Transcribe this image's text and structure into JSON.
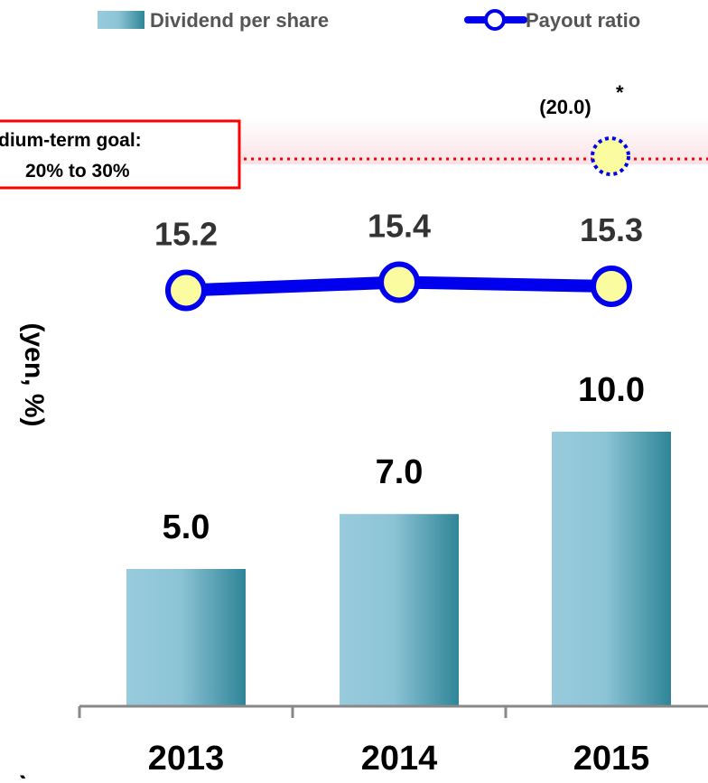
{
  "chart_data": {
    "type": "bar",
    "categories": [
      "2013",
      "2014",
      "2015"
    ],
    "series": [
      {
        "name": "Dividend per share",
        "kind": "bar",
        "values": [
          5.0,
          7.0,
          10.0
        ],
        "labels": [
          "5.0",
          "7.0",
          "10.0"
        ]
      },
      {
        "name": "Payout ratio",
        "kind": "line",
        "values": [
          15.2,
          15.4,
          15.3
        ],
        "labels": [
          "15.2",
          "15.4",
          "15.3"
        ]
      }
    ],
    "target_point": {
      "category": "2015",
      "value": 20.0,
      "label": "(20.0)",
      "note": "*"
    },
    "goal_label": [
      "dium-term goal:",
      "20% to 30%"
    ],
    "ylabel": "(yen, %)",
    "legend_position": "top",
    "grid": false,
    "colors": {
      "bar_light": "#98cbdc",
      "bar_dark": "#2e8597",
      "line": "#0000ee",
      "marker_fill": "#fbfb9f",
      "goal_line": "#ff0000",
      "goal_band": "#fbe6e8"
    }
  }
}
